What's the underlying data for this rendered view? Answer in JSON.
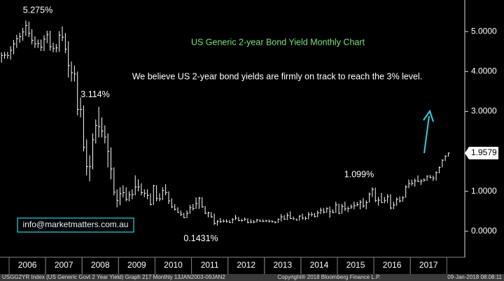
{
  "chart_data": {
    "type": "ohlc",
    "title": "US Generic 2-year Bond Yield Monthly Chart",
    "subtitle": "We believe US 2-year bond yields are firmly on track to reach the 3% level.",
    "contact": "info@marketmatters.com.au",
    "footer": [
      "USGG2YR Index (US Generic Govt 2 Year Yield) Graph 217  Monthly 13JAN2003-09JAN2",
      "Copyright® 2018 Bloomberg Finance L.P.",
      "09-Jan-2018 08:08:11"
    ],
    "annotations": [
      {
        "value": 5.275,
        "label": "5.275%"
      },
      {
        "value": 3.114,
        "label": "3.114%"
      },
      {
        "value": 0.1431,
        "label": "0.1431%"
      },
      {
        "value": 1.099,
        "label": "1.099%"
      }
    ],
    "color": "#ffffff",
    "ylim": [
      -0.65,
      5.79
    ],
    "yticks": [
      {
        "value": 0,
        "label": "0.0000"
      },
      {
        "value": 1,
        "label": "1.0000"
      },
      {
        "value": 3,
        "label": "3.0000"
      },
      {
        "value": 4,
        "label": "4.0000"
      },
      {
        "value": 5,
        "label": "5.0000"
      }
    ],
    "categories": [
      null,
      null,
      null,
      null,
      null,
      null,
      null,
      null,
      null,
      "2006",
      null,
      null,
      null,
      null,
      null,
      null,
      null,
      null,
      null,
      null,
      null,
      "2007",
      null,
      null,
      null,
      null,
      null,
      null,
      null,
      null,
      null,
      null,
      null,
      "2008",
      null,
      null,
      null,
      null,
      null,
      null,
      null,
      null,
      null,
      null,
      null,
      "2009",
      null,
      null,
      null,
      null,
      null,
      null,
      null,
      null,
      null,
      null,
      null,
      "2010",
      null,
      null,
      null,
      null,
      null,
      null,
      null,
      null,
      null,
      null,
      null,
      "2011",
      null,
      null,
      null,
      null,
      null,
      null,
      null,
      null,
      null,
      null,
      null,
      "2012",
      null,
      null,
      null,
      null,
      null,
      null,
      null,
      null,
      null,
      null,
      null,
      "2013",
      null,
      null,
      null,
      null,
      null,
      null,
      null,
      null,
      null,
      null,
      null,
      "2014",
      null,
      null,
      null,
      null,
      null,
      null,
      null,
      null,
      null,
      null,
      null,
      "2015",
      null,
      null,
      null,
      null,
      null,
      null,
      null,
      null,
      null,
      null,
      null,
      "2016",
      null,
      null,
      null,
      null,
      null,
      null,
      null,
      null,
      null,
      null,
      null,
      "2017",
      null,
      null,
      null,
      null,
      null,
      null,
      null,
      null,
      null,
      null
    ],
    "values": [
      4.4,
      4.41,
      4.4,
      4.53,
      4.69,
      4.82,
      4.87,
      4.99,
      5.15,
      4.96,
      4.78,
      4.69,
      4.7,
      4.61,
      4.81,
      4.92,
      4.62,
      4.58,
      4.59,
      4.91,
      4.86,
      4.56,
      4.15,
      3.97,
      3.94,
      3.05,
      3.05,
      2.1,
      1.62,
      1.62,
      2.29,
      2.65,
      2.62,
      2.51,
      2.36,
      2.0,
      1.56,
      0.98,
      0.77,
      0.94,
      0.97,
      0.8,
      0.91,
      0.92,
      1.11,
      1.11,
      0.97,
      0.95,
      0.9,
      0.67,
      1.14,
      0.82,
      0.81,
      1.02,
      0.97,
      0.76,
      0.61,
      0.55,
      0.47,
      0.42,
      0.34,
      0.45,
      0.59,
      0.57,
      0.69,
      0.83,
      0.61,
      0.45,
      0.46,
      0.36,
      0.2,
      0.25,
      0.24,
      0.25,
      0.24,
      0.22,
      0.29,
      0.33,
      0.27,
      0.27,
      0.3,
      0.22,
      0.23,
      0.23,
      0.28,
      0.25,
      0.25,
      0.26,
      0.25,
      0.24,
      0.22,
      0.3,
      0.36,
      0.3,
      0.39,
      0.32,
      0.31,
      0.28,
      0.38,
      0.33,
      0.32,
      0.42,
      0.42,
      0.37,
      0.46,
      0.53,
      0.48,
      0.57,
      0.49,
      0.47,
      0.66,
      0.45,
      0.62,
      0.56,
      0.57,
      0.61,
      0.64,
      0.67,
      0.73,
      0.63,
      0.72,
      0.93,
      1.05,
      0.77,
      0.78,
      0.72,
      0.77,
      0.87,
      0.58,
      0.66,
      0.8,
      0.76,
      0.84,
      1.11,
      1.19,
      1.2,
      1.26,
      1.25,
      1.26,
      1.28,
      1.38,
      1.35,
      1.33,
      1.47,
      1.6,
      1.78,
      1.88,
      1.9579,
      null,
      null,
      null,
      null
    ],
    "high": [
      4.48,
      4.49,
      4.49,
      4.63,
      4.79,
      4.92,
      4.97,
      5.09,
      5.275,
      5.25,
      5.06,
      4.88,
      4.8,
      4.8,
      4.91,
      5.02,
      5.02,
      4.72,
      4.69,
      5.01,
      5.13,
      4.96,
      4.76,
      4.25,
      4.15,
      4.0,
      3.35,
      3.15,
      2.3,
      1.9,
      2.45,
      2.8,
      3.114,
      2.85,
      2.65,
      2.45,
      2.1,
      1.6,
      1.05,
      1.1,
      1.15,
      1.1,
      1.0,
      1.05,
      1.4,
      1.3,
      1.2,
      1.05,
      1.05,
      0.95,
      1.16,
      1.15,
      0.95,
      1.1,
      1.18,
      1.0,
      0.82,
      0.68,
      0.6,
      0.52,
      0.46,
      0.52,
      0.66,
      0.68,
      0.85,
      0.86,
      0.85,
      0.63,
      0.49,
      0.48,
      0.44,
      0.28,
      0.33,
      0.3,
      0.3,
      0.28,
      0.33,
      0.41,
      0.36,
      0.31,
      0.34,
      0.32,
      0.3,
      0.28,
      0.31,
      0.3,
      0.3,
      0.29,
      0.29,
      0.28,
      0.26,
      0.32,
      0.43,
      0.4,
      0.46,
      0.5,
      0.37,
      0.32,
      0.4,
      0.44,
      0.37,
      0.48,
      0.48,
      0.46,
      0.52,
      0.59,
      0.58,
      0.6,
      0.62,
      0.55,
      0.74,
      0.69,
      0.68,
      0.74,
      0.62,
      0.67,
      0.74,
      0.73,
      0.78,
      0.83,
      0.77,
      0.97,
      1.099,
      1.09,
      0.86,
      0.96,
      0.86,
      0.93,
      0.93,
      0.74,
      0.85,
      0.87,
      0.88,
      1.15,
      1.3,
      1.29,
      1.32,
      1.4,
      1.3,
      1.33,
      1.4,
      1.41,
      1.39,
      1.5,
      1.62,
      1.8,
      1.9,
      1.97,
      null,
      null,
      null,
      null
    ],
    "low": [
      4.22,
      4.32,
      4.32,
      4.3,
      4.43,
      4.59,
      4.72,
      4.77,
      4.89,
      4.86,
      4.68,
      4.59,
      4.59,
      4.51,
      4.51,
      4.71,
      4.52,
      4.48,
      4.48,
      4.49,
      4.76,
      4.46,
      3.85,
      3.75,
      3.75,
      2.9,
      2.85,
      2.0,
      1.4,
      1.25,
      1.55,
      2.2,
      2.35,
      2.35,
      2.2,
      1.6,
      1.3,
      0.9,
      0.6,
      0.65,
      0.85,
      0.75,
      0.75,
      0.8,
      0.9,
      1.0,
      0.9,
      0.85,
      0.8,
      0.65,
      0.66,
      0.75,
      0.75,
      0.78,
      0.9,
      0.68,
      0.58,
      0.52,
      0.46,
      0.38,
      0.33,
      0.33,
      0.44,
      0.52,
      0.56,
      0.56,
      0.59,
      0.43,
      0.35,
      0.34,
      0.16,
      0.1431,
      0.21,
      0.22,
      0.22,
      0.21,
      0.2,
      0.28,
      0.25,
      0.24,
      0.26,
      0.2,
      0.2,
      0.2,
      0.22,
      0.24,
      0.23,
      0.23,
      0.22,
      0.22,
      0.2,
      0.21,
      0.25,
      0.29,
      0.28,
      0.31,
      0.29,
      0.27,
      0.27,
      0.29,
      0.28,
      0.3,
      0.37,
      0.35,
      0.35,
      0.43,
      0.45,
      0.46,
      0.34,
      0.45,
      0.46,
      0.43,
      0.44,
      0.51,
      0.48,
      0.56,
      0.55,
      0.62,
      0.55,
      0.59,
      0.55,
      0.72,
      0.86,
      0.73,
      0.64,
      0.71,
      0.7,
      0.71,
      0.55,
      0.55,
      0.64,
      0.72,
      0.74,
      0.84,
      1.08,
      1.14,
      1.12,
      1.23,
      1.16,
      1.24,
      1.26,
      1.33,
      1.26,
      1.27,
      1.45,
      1.6,
      1.76,
      1.87,
      null,
      null,
      null,
      null
    ]
  }
}
